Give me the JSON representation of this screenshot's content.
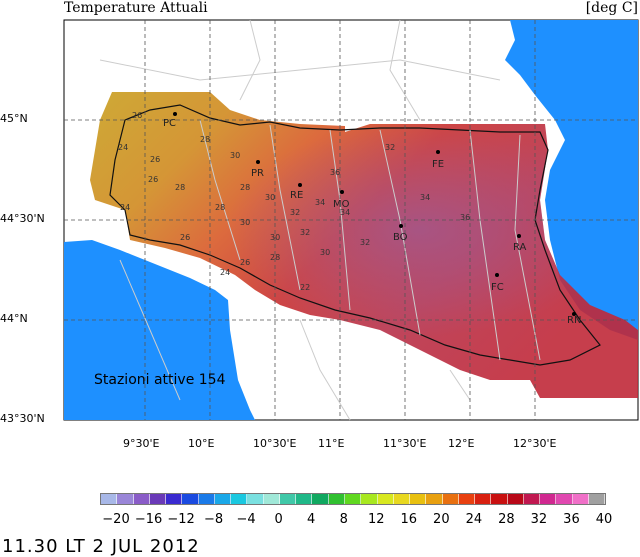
{
  "header": {
    "title": "Temperature Attuali",
    "units": "[deg C]"
  },
  "stations_label": "Stazioni attive 154",
  "lat_labels": [
    "45°N",
    "44°30'N",
    "44°N",
    "43°30'N"
  ],
  "lon_labels": [
    "9°30'E",
    "10°E",
    "10°30'E",
    "11°E",
    "11°30'E",
    "12°E",
    "12°30'E"
  ],
  "cities": [
    "PC",
    "PR",
    "RE",
    "MO",
    "BO",
    "FE",
    "RA",
    "FC",
    "RN"
  ],
  "isotherm_labels": [
    "26",
    "24",
    "26",
    "28",
    "30",
    "28",
    "26",
    "24",
    "28",
    "30",
    "32",
    "34",
    "36",
    "28",
    "30",
    "30",
    "32",
    "34",
    "32",
    "28",
    "26",
    "24",
    "22",
    "26",
    "30",
    "32",
    "34",
    "36"
  ],
  "colorbar": {
    "ticks": [
      "−20",
      "−16",
      "−12",
      "−8",
      "−4",
      "0",
      "4",
      "8",
      "12",
      "16",
      "20",
      "24",
      "28",
      "32",
      "36",
      "40"
    ],
    "colors": [
      "#a8b8e8",
      "#9a86d8",
      "#8a5cc8",
      "#6a3ab8",
      "#3a2ad0",
      "#1a4ae0",
      "#1a7ae8",
      "#1aa8e8",
      "#1ac8e0",
      "#7ae0e0",
      "#a0e8d8",
      "#40c8a8",
      "#20b888",
      "#10a860",
      "#30c030",
      "#60d820",
      "#a8e820",
      "#d8e820",
      "#e8d820",
      "#e8c010",
      "#e8a010",
      "#e87010",
      "#e84010",
      "#d82010",
      "#c81010",
      "#b80818",
      "#c01850",
      "#d02890",
      "#e048b0",
      "#f070c8",
      "#a0a0a0"
    ]
  },
  "timestamp": "11.30 LT   2 JUL 2012"
}
